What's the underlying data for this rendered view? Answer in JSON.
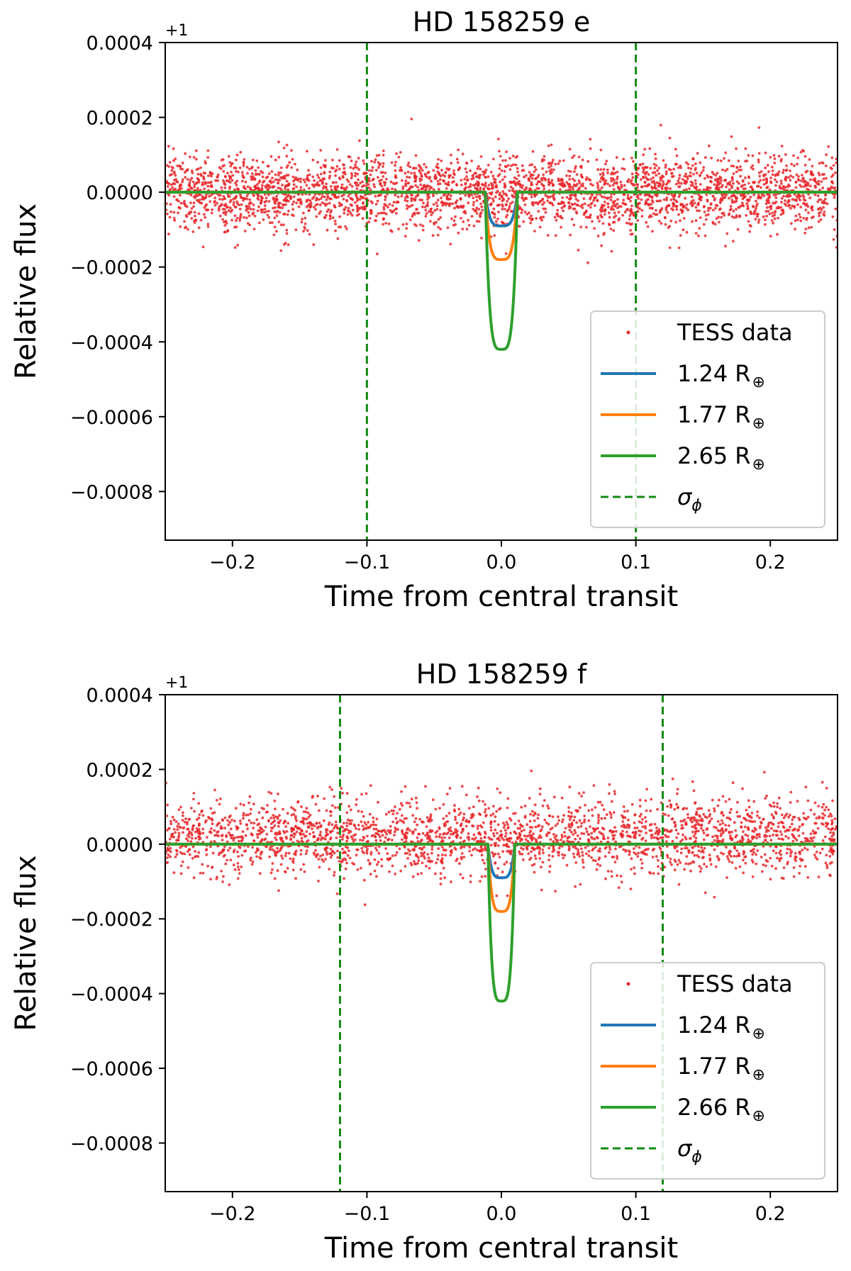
{
  "chart_data": [
    {
      "type": "scatter+line",
      "title": "HD 158259 e",
      "xlabel": "Time from central transit",
      "ylabel": "Relative flux",
      "xlim": [
        -0.25,
        0.25
      ],
      "ylim": [
        -0.00093,
        0.0004
      ],
      "y_offset_label": "+1",
      "xticks": [
        -0.2,
        -0.1,
        0.0,
        0.1,
        0.2
      ],
      "xtick_labels": [
        "−0.2",
        "−0.1",
        "0.0",
        "0.1",
        "0.2"
      ],
      "yticks": [
        0.0004,
        0.0002,
        0.0,
        -0.0002,
        -0.0004,
        -0.0006,
        -0.0008
      ],
      "ytick_labels": [
        "0.0004",
        "0.0002",
        "0.0000",
        "−0.0002",
        "−0.0004",
        "−0.0006",
        "−0.0008"
      ],
      "scatter": {
        "name": "TESS data",
        "color": "#e8282b",
        "n_points": 3200,
        "center": 0.0,
        "std": 5e-05,
        "seed": 11
      },
      "transit": {
        "t_start": -0.012,
        "t_end": 0.012
      },
      "models": [
        {
          "name": "1.24",
          "depth": -9e-05,
          "color": "#1f77b4"
        },
        {
          "name": "1.77",
          "depth": -0.00018,
          "color": "#ff7f0e"
        },
        {
          "name": "2.65",
          "depth": -0.00042,
          "color": "#2ca02c"
        }
      ],
      "sigma_phi": {
        "label": "σ",
        "sub": "ϕ",
        "x": [
          -0.1,
          0.1
        ],
        "color": "#138a13"
      },
      "legend_unit": "R",
      "legend_sub": "⊕",
      "legend_location": "lower right"
    },
    {
      "type": "scatter+line",
      "title": "HD 158259 f",
      "xlabel": "Time from central transit",
      "ylabel": "Relative flux",
      "xlim": [
        -0.25,
        0.25
      ],
      "ylim": [
        -0.00093,
        0.0004
      ],
      "y_offset_label": "+1",
      "xticks": [
        -0.2,
        -0.1,
        0.0,
        0.1,
        0.2
      ],
      "xtick_labels": [
        "−0.2",
        "−0.1",
        "0.0",
        "0.1",
        "0.2"
      ],
      "yticks": [
        0.0004,
        0.0002,
        0.0,
        -0.0002,
        -0.0004,
        -0.0006,
        -0.0008
      ],
      "ytick_labels": [
        "0.0004",
        "0.0002",
        "0.0000",
        "−0.0002",
        "−0.0004",
        "−0.0006",
        "−0.0008"
      ],
      "scatter": {
        "name": "TESS data",
        "color": "#e8282b",
        "n_points": 2500,
        "center": 2e-05,
        "std": 5e-05,
        "seed": 29
      },
      "transit": {
        "t_start": -0.01,
        "t_end": 0.01
      },
      "models": [
        {
          "name": "1.24",
          "depth": -9e-05,
          "color": "#1f77b4"
        },
        {
          "name": "1.77",
          "depth": -0.00018,
          "color": "#ff7f0e"
        },
        {
          "name": "2.66",
          "depth": -0.00042,
          "color": "#2ca02c"
        }
      ],
      "sigma_phi": {
        "label": "σ",
        "sub": "ϕ",
        "x": [
          -0.12,
          0.12
        ],
        "color": "#138a13"
      },
      "legend_unit": "R",
      "legend_sub": "⊕",
      "legend_location": "lower right"
    }
  ]
}
